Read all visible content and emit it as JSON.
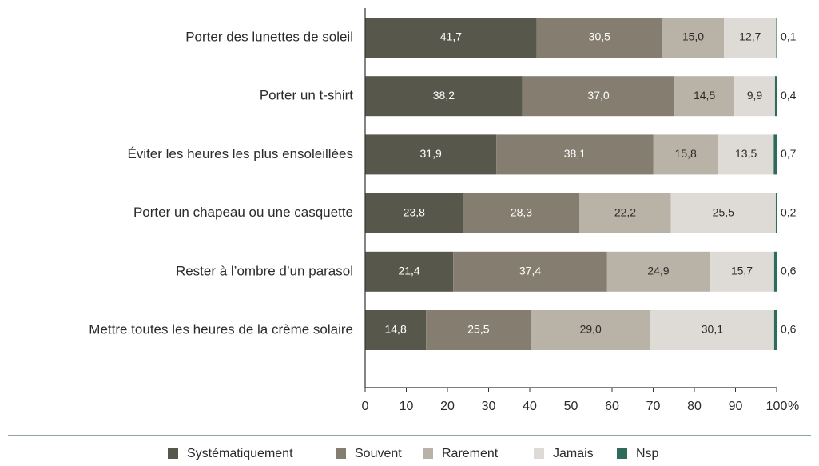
{
  "chart_data": {
    "type": "stacked-bar-horizontal",
    "categories": [
      "Porter des lunettes de soleil",
      "Porter un t-shirt",
      "Éviter les heures les plus ensoleillées",
      "Porter un chapeau ou une casquette",
      "Rester à l’ombre d’un parasol",
      "Mettre toutes les heures de la crème solaire"
    ],
    "series": [
      {
        "name": "Systématiquement",
        "color": "#58574b",
        "values": [
          41.7,
          38.2,
          31.9,
          23.8,
          21.4,
          14.8
        ],
        "value_labels": [
          "41,7",
          "38,2",
          "31,9",
          "23,8",
          "21,4",
          "14,8"
        ]
      },
      {
        "name": "Souvent",
        "color": "#857e70",
        "values": [
          30.5,
          37.0,
          38.1,
          28.3,
          37.4,
          25.5
        ],
        "value_labels": [
          "30,5",
          "37,0",
          "38,1",
          "28,3",
          "37,4",
          "25,5"
        ]
      },
      {
        "name": "Rarement",
        "color": "#b8b3a6",
        "values": [
          15.0,
          14.5,
          15.8,
          22.2,
          24.9,
          29.0
        ],
        "value_labels": [
          "15,0",
          "14,5",
          "15,8",
          "22,2",
          "24,9",
          "29,0"
        ]
      },
      {
        "name": "Jamais",
        "color": "#dedbd6",
        "values": [
          12.7,
          9.9,
          13.5,
          25.5,
          15.7,
          30.1
        ],
        "value_labels": [
          "12,7",
          "9,9",
          "13,5",
          "25,5",
          "15,7",
          "30,1"
        ]
      },
      {
        "name": "Nsp",
        "color": "#2e6b5a",
        "values": [
          0.1,
          0.4,
          0.7,
          0.2,
          0.6,
          0.6
        ],
        "value_labels": [
          "0,1",
          "0,4",
          "0,7",
          "0,2",
          "0,6",
          "0,6"
        ]
      }
    ],
    "xlim": [
      0,
      100
    ],
    "xticks": [
      0,
      10,
      20,
      30,
      40,
      50,
      60,
      70,
      80,
      90,
      100
    ],
    "xlabel": "%",
    "legend": "bottom"
  }
}
